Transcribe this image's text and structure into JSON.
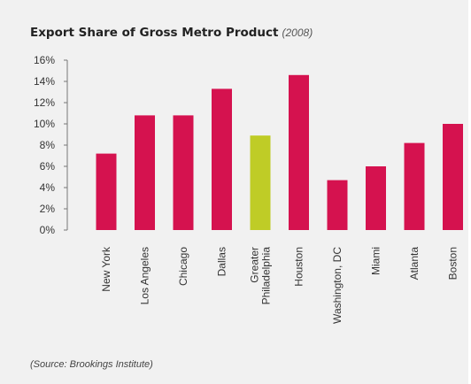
{
  "chart_data": {
    "type": "bar",
    "title": "Export Share of Gross Metro Product",
    "subtitle": "(2008)",
    "source": "(Source: Brookings Institute)",
    "categories": [
      "New York",
      "Los Angeles",
      "Chicago",
      "Dallas",
      "Greater Philadelphia",
      "Houston",
      "Washington, DC",
      "Miami",
      "Atlanta",
      "Boston"
    ],
    "category_lines": [
      [
        "New York"
      ],
      [
        "Los Angeles"
      ],
      [
        "Chicago"
      ],
      [
        "Dallas"
      ],
      [
        "Greater",
        "Philadelphia"
      ],
      [
        "Houston"
      ],
      [
        "Washington, DC"
      ],
      [
        "Miami"
      ],
      [
        "Atlanta"
      ],
      [
        "Boston"
      ]
    ],
    "values": [
      7.2,
      10.8,
      10.8,
      13.3,
      8.9,
      14.6,
      4.7,
      6.0,
      8.2,
      10.0
    ],
    "highlight_category": "Greater Philadelphia",
    "yticks": [
      "0%",
      "2%",
      "4%",
      "6%",
      "8%",
      "10%",
      "12%",
      "14%",
      "16%"
    ],
    "ylim": [
      0,
      16
    ],
    "ytick_step": 2,
    "xlabel": "",
    "ylabel": "",
    "grid": false,
    "legend": "none",
    "colors": {
      "bar": "#d5124f",
      "highlight": "#bfcc26",
      "axis": "#777777"
    }
  }
}
